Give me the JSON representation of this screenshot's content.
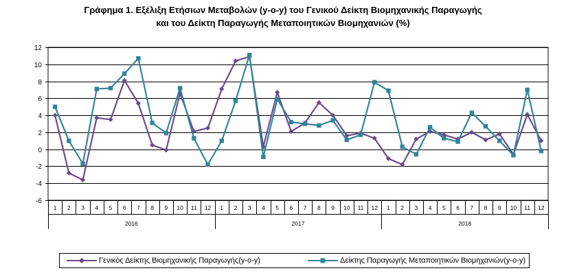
{
  "chart_data": {
    "type": "line",
    "title": "Γράφημα 1. Εξέλιξη Ετήσιων Μεταβολών (y-o-y) του Γενικού Δείκτη Βιομηχανικής Παραγωγής",
    "subtitle": "και του Δείκτη Παραγωγής Μεταποιητικών Βιομηχανιών (%)",
    "xlabel": "",
    "ylabel": "",
    "ylim": [
      -6,
      12
    ],
    "yticks": [
      -6,
      -4,
      -2,
      0,
      2,
      4,
      6,
      8,
      10,
      12
    ],
    "grid": true,
    "legend_position": "bottom",
    "categories": [
      "1",
      "2",
      "3",
      "4",
      "5",
      "6",
      "7",
      "8",
      "9",
      "10",
      "11",
      "12",
      "1",
      "2",
      "3",
      "4",
      "5",
      "6",
      "7",
      "8",
      "9",
      "10",
      "11",
      "12",
      "1",
      "2",
      "3",
      "4",
      "5",
      "6",
      "7",
      "8",
      "9",
      "10",
      "11",
      "12"
    ],
    "year_groups": [
      {
        "label": "2016",
        "count": 12
      },
      {
        "label": "2017",
        "count": 12
      },
      {
        "label": "2018",
        "count": 12
      }
    ],
    "series": [
      {
        "name": "Γενικός Δείκτης Βιομηχανικής Παραγωγής(y-o-y)",
        "color": "#6B4A8C",
        "marker": "diamond",
        "values": [
          4.0,
          -2.8,
          -3.6,
          3.7,
          3.5,
          8.1,
          5.4,
          0.5,
          -0.1,
          6.6,
          2.1,
          2.5,
          7.1,
          10.4,
          10.9,
          0.3,
          6.7,
          2.1,
          3.1,
          5.5,
          4.0,
          1.6,
          1.9,
          1.3,
          -1.1,
          -1.8,
          1.2,
          2.1,
          1.7,
          1.2,
          2.0,
          1.1,
          1.8,
          -0.6,
          4.1,
          1.0
        ]
      },
      {
        "name": "Δείκτης Παραγωγής Μεταποιητικών Βιομηχανιών(y-o-y)",
        "color": "#31849B",
        "marker": "square",
        "values": [
          5.0,
          1.0,
          -1.7,
          7.1,
          7.2,
          8.9,
          10.7,
          3.1,
          1.9,
          7.2,
          1.3,
          -1.8,
          1.0,
          5.7,
          11.1,
          -0.9,
          5.9,
          3.2,
          3.0,
          2.8,
          3.4,
          1.1,
          1.7,
          7.9,
          6.9,
          0.3,
          -0.6,
          2.6,
          1.3,
          0.9,
          4.3,
          2.7,
          1.0,
          -0.7,
          7.0,
          -0.2
        ]
      }
    ]
  }
}
